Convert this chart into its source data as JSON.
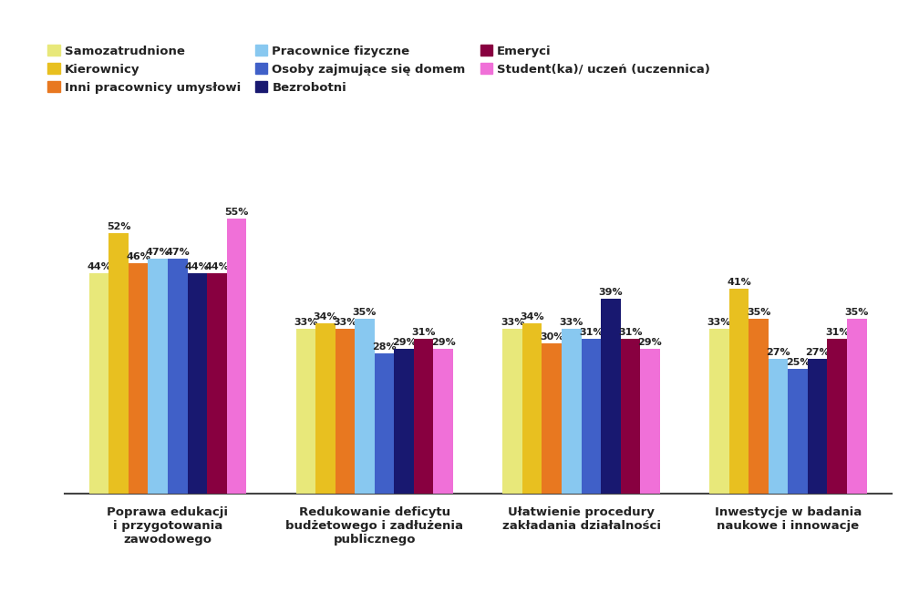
{
  "categories": [
    "Poprawa edukacji\ni przygotowania\nzawodowego",
    "Redukowanie deficytu\nbudżetowego i zadłużenia\npublicznego",
    "Ułatwienie procedury\nzakładania działalności",
    "Inwestycje w badania\nnaukowe i innowacje"
  ],
  "series": [
    {
      "name": "Samozatrudnione",
      "color": "#e8e87a",
      "values": [
        44,
        33,
        33,
        33
      ]
    },
    {
      "name": "Kierownicy",
      "color": "#e8c020",
      "values": [
        52,
        34,
        34,
        41
      ]
    },
    {
      "name": "Inni pracownicy umysłowi",
      "color": "#e87820",
      "values": [
        46,
        33,
        30,
        35
      ]
    },
    {
      "name": "Pracownice fizyczne",
      "color": "#88c8f0",
      "values": [
        47,
        35,
        33,
        27
      ]
    },
    {
      "name": "Osoby zajmujące się domem",
      "color": "#4060c8",
      "values": [
        47,
        28,
        31,
        25
      ]
    },
    {
      "name": "Bezrobotni",
      "color": "#181870",
      "values": [
        44,
        29,
        39,
        27
      ]
    },
    {
      "name": "Emeryci",
      "color": "#880040",
      "values": [
        44,
        31,
        31,
        31
      ]
    },
    {
      "name": "Student(ka)/ uczeń (uczennica)",
      "color": "#f070d8",
      "values": [
        55,
        29,
        29,
        35
      ]
    }
  ],
  "ylim": [
    0,
    65
  ],
  "background_color": "#ffffff",
  "bar_width": 0.095,
  "label_fontsize": 8.0,
  "xtick_fontsize": 9.5,
  "legend_fontsize": 9.5,
  "legend_ncol": 3,
  "legend_order": [
    0,
    1,
    2,
    3,
    4,
    5,
    6,
    7
  ]
}
